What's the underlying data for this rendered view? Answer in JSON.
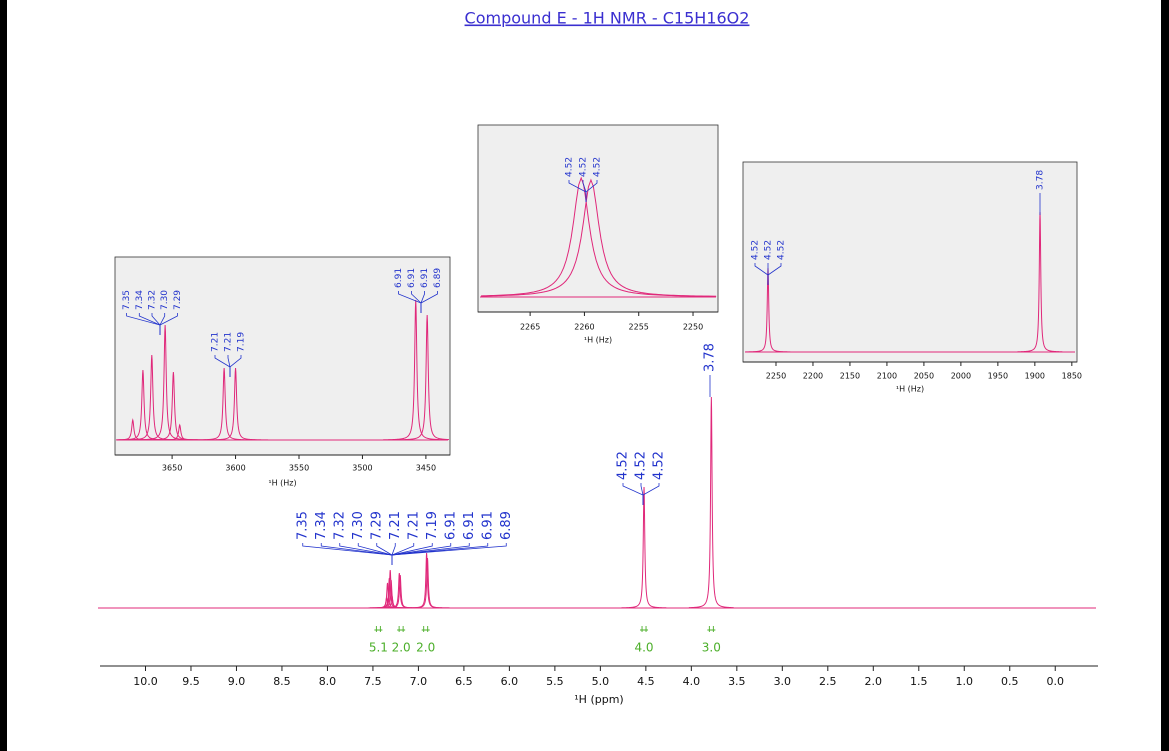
{
  "title": "Compound E - 1H NMR - C15H16O2",
  "chart_data": [
    {
      "type": "line",
      "xlabel": "¹H (ppm)",
      "color": "#e0287a",
      "xlim": [
        10.5,
        -0.47
      ],
      "ylim": [
        0,
        240
      ],
      "xticks": [
        {
          "value": 10,
          "label": "10.0"
        },
        9.5,
        {
          "value": 9,
          "label": "9.0"
        },
        8.5,
        {
          "value": 8,
          "label": "8.0"
        },
        7.5,
        {
          "value": 7,
          "label": "7.0"
        },
        6.5,
        {
          "value": 6,
          "label": "6.0"
        },
        5.5,
        {
          "value": 5,
          "label": "5.0"
        },
        4.5,
        {
          "value": 4,
          "label": "4.0"
        },
        3.5,
        {
          "value": 3,
          "label": "3.0"
        },
        2.5,
        {
          "value": 2,
          "label": "2.0"
        },
        1.5,
        {
          "value": 1,
          "label": "1.0"
        },
        0.5,
        {
          "value": 0,
          "label": "0.0"
        }
      ],
      "x": [
        7.35,
        7.34,
        7.32,
        7.31,
        7.3,
        7.29,
        7.21,
        7.2,
        6.91,
        6.9,
        4.52,
        3.78
      ],
      "values": [
        10,
        25,
        30,
        38,
        28,
        12,
        35,
        33,
        55,
        50,
        121,
        211
      ],
      "peak_labels": [
        [
          7.35,
          7.34,
          7.32,
          {
            "value": 7.3,
            "label": "7.30"
          },
          7.29,
          7.21,
          7.21,
          7.19,
          6.91,
          6.91,
          6.91,
          6.89
        ],
        [
          4.52,
          4.52,
          4.52
        ],
        [
          3.78
        ]
      ],
      "integrals": {
        "x": [
          7.44,
          7.19,
          6.92,
          4.52,
          3.78
        ],
        "values": [
          5.1,
          2,
          2,
          4,
          3
        ],
        "value_labels": [
          "5.1",
          "2.0",
          "2.0",
          "4.0",
          "3.0"
        ]
      }
    },
    {
      "type": "line",
      "xlabel": "¹H (Hz)",
      "color": "#e0287a",
      "xlim": [
        3695,
        3431
      ],
      "ylim": [
        -15,
        183
      ],
      "xticks": [
        3650,
        3600,
        3550,
        3500,
        3450
      ],
      "x": [
        3681,
        3673,
        3666,
        3655.5,
        3649,
        3644,
        3609,
        3600,
        3458,
        3449
      ],
      "values": [
        20,
        70,
        85,
        115,
        68,
        15,
        72,
        72,
        140,
        125
      ],
      "peak_labels": [
        [
          7.35,
          7.34,
          7.32,
          {
            "value": 7.3,
            "label": "7.30"
          },
          7.29
        ],
        [
          7.21,
          7.21,
          7.19
        ],
        [
          6.91,
          6.91,
          6.91,
          6.89
        ]
      ]
    },
    {
      "type": "line",
      "xlabel": "¹H (Hz)",
      "color": "#e0287a",
      "xlim": [
        2269.8,
        2247.7
      ],
      "ylim": [
        -15,
        172
      ],
      "xticks": [
        2265,
        2260,
        2255,
        2250
      ],
      "x": [
        2260.3,
        2259.4
      ],
      "values": [
        119,
        117
      ],
      "peak_labels": [
        [
          4.52,
          4.52,
          4.52
        ]
      ]
    },
    {
      "type": "line",
      "xlabel": "¹H (Hz)",
      "color": "#e0287a",
      "xlim": [
        2294.6,
        1843
      ],
      "ylim": [
        -10,
        190
      ],
      "xticks": [
        2250,
        2200,
        2150,
        2100,
        2050,
        2000,
        1950,
        1900,
        1850
      ],
      "x": [
        2260.8,
        1893
      ],
      "values": [
        84,
        140
      ],
      "peak_labels": [
        [
          4.52,
          4.52,
          4.52
        ],
        [
          3.78
        ]
      ]
    }
  ]
}
